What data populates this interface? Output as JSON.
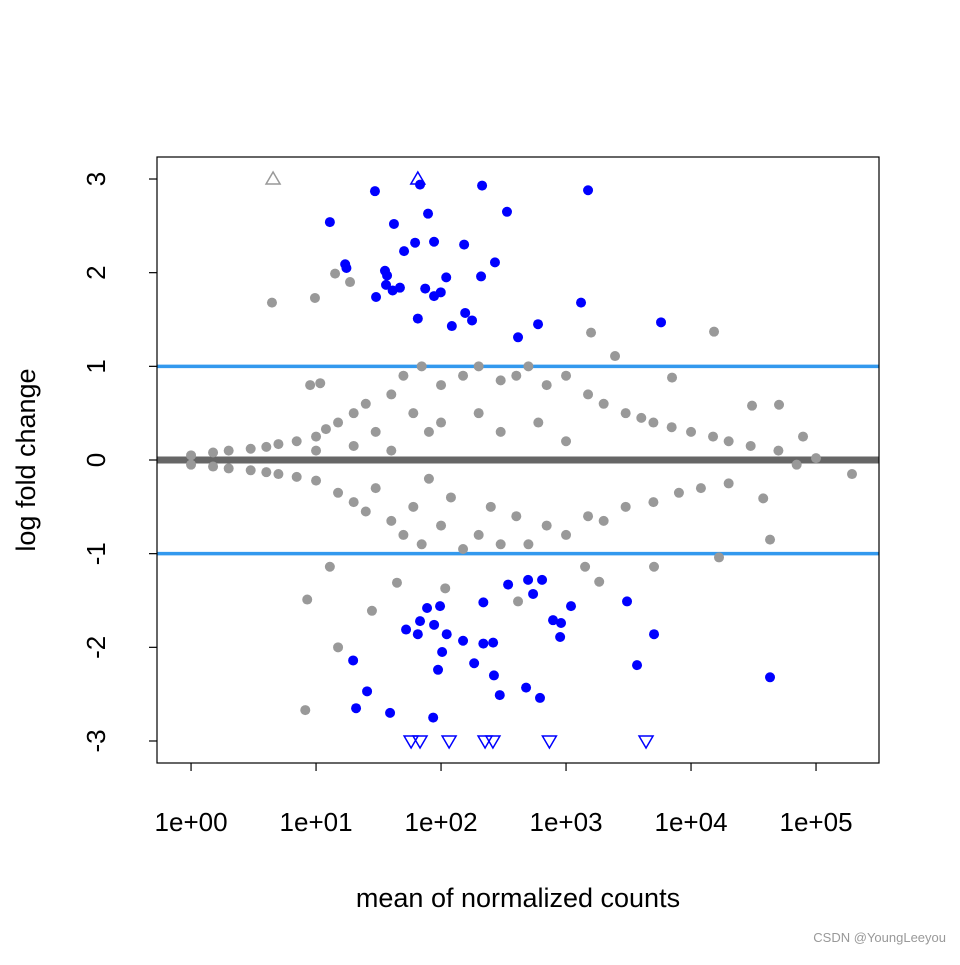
{
  "chart_data": {
    "type": "scatter",
    "xlabel": "mean of normalized counts",
    "ylabel": "log fold change",
    "log_x": true,
    "xlim": [
      0.534,
      319000
    ],
    "ylim": [
      -3.235,
      3.235
    ],
    "xticks": [
      {
        "value": 1,
        "label": "1e+00"
      },
      {
        "value": 10,
        "label": "1e+01"
      },
      {
        "value": 100,
        "label": "1e+02"
      },
      {
        "value": 1000,
        "label": "1e+03"
      },
      {
        "value": 10000,
        "label": "1e+04"
      },
      {
        "value": 100000,
        "label": "1e+05"
      }
    ],
    "yticks": [
      -3,
      -2,
      -1,
      0,
      1,
      2,
      3
    ],
    "hlines": [
      {
        "value": 0,
        "color": "#666666"
      },
      {
        "value": 1,
        "color": "#3399ee"
      },
      {
        "value": -1,
        "color": "#3399ee"
      }
    ],
    "series": [
      {
        "color": "#999999",
        "shape": "circle",
        "x": [
          1,
          1,
          1.5,
          1.5,
          2,
          2,
          3,
          3,
          4,
          4,
          5,
          5,
          7,
          7,
          10,
          10,
          10,
          12,
          15,
          15,
          20,
          20,
          20,
          25,
          25,
          30,
          30,
          40,
          40,
          40,
          50,
          50,
          60,
          60,
          70,
          70,
          80,
          80,
          100,
          100,
          100,
          120,
          150,
          150,
          200,
          200,
          200,
          250,
          300,
          300,
          300,
          400,
          400,
          500,
          500,
          600,
          700,
          700,
          1000,
          1000,
          1000,
          1500,
          1500,
          2000,
          2000,
          3000,
          3000,
          4000,
          5000,
          5000,
          7000,
          8000,
          10000,
          12000,
          15000,
          20000,
          20000,
          30000,
          50000,
          70000,
          100000,
          4.44,
          9.8,
          14.2,
          18.7,
          8.2,
          15,
          28,
          12.9,
          194000,
          15280,
          1585,
          2466,
          30760,
          50580,
          42850,
          5057,
          16740,
          1842,
          413,
          8.5,
          8.97,
          10.8,
          7047,
          78700,
          37800,
          1420,
          108,
          44.4
        ],
        "values": [
          0.05,
          -0.05,
          0.08,
          -0.07,
          0.1,
          -0.09,
          0.12,
          -0.11,
          0.14,
          -0.13,
          0.17,
          -0.15,
          0.2,
          -0.18,
          0.25,
          -0.22,
          0.1,
          0.33,
          0.4,
          -0.35,
          0.5,
          -0.45,
          0.15,
          0.6,
          -0.55,
          0.3,
          -0.3,
          0.7,
          -0.65,
          0.1,
          0.9,
          -0.8,
          0.5,
          -0.5,
          1.0,
          -0.9,
          0.3,
          -0.2,
          0.8,
          -0.7,
          0.4,
          -0.4,
          0.9,
          -0.95,
          1.0,
          -0.8,
          0.5,
          -0.5,
          0.85,
          -0.9,
          0.3,
          0.9,
          -0.6,
          1.0,
          -0.9,
          0.4,
          0.8,
          -0.7,
          0.9,
          -0.8,
          0.2,
          0.7,
          -0.6,
          0.6,
          -0.65,
          0.5,
          -0.5,
          0.45,
          0.4,
          -0.45,
          0.35,
          -0.35,
          0.3,
          -0.3,
          0.25,
          0.2,
          -0.25,
          0.15,
          0.1,
          -0.05,
          0.02,
          1.68,
          1.73,
          1.99,
          1.9,
          -2.67,
          -2.0,
          -1.61,
          -1.14,
          -0.15,
          1.37,
          1.36,
          1.11,
          0.58,
          0.59,
          -0.85,
          -1.14,
          -1.04,
          -1.3,
          -1.51,
          -1.49,
          0.8,
          0.82,
          0.88,
          0.25,
          -0.41,
          -1.14,
          -1.37,
          -1.31
        ]
      },
      {
        "color": "#0000ff",
        "shape": "circle",
        "x": [
          12.9,
          29.6,
          67.9,
          213,
          337,
          1500,
          42,
          78.7,
          17.1,
          17.5,
          50.6,
          62,
          87.9,
          153,
          35.6,
          37,
          110,
          209,
          270,
          36.3,
          41,
          46.9,
          74.7,
          87.9,
          99.5,
          30.2,
          65.2,
          156,
          177,
          122,
          413,
          597,
          1318,
          5754,
          344,
          497,
          643,
          545,
          218,
          1096,
          3076,
          77.3,
          98.2,
          67.9,
          88,
          111,
          52.5,
          65.2,
          150,
          261,
          218,
          787,
          912,
          897,
          5058,
          102,
          19.8,
          184,
          3698,
          94.6,
          265,
          25.6,
          295,
          479,
          619,
          20.9,
          39.1,
          86.5,
          42850
        ],
        "values": [
          2.54,
          2.87,
          2.94,
          2.93,
          2.65,
          2.88,
          2.52,
          2.63,
          2.09,
          2.05,
          2.23,
          2.32,
          2.33,
          2.3,
          2.02,
          1.97,
          1.95,
          1.96,
          2.11,
          1.87,
          1.81,
          1.84,
          1.83,
          1.75,
          1.79,
          1.74,
          1.51,
          1.57,
          1.49,
          1.43,
          1.31,
          1.45,
          1.68,
          1.47,
          -1.33,
          -1.28,
          -1.28,
          -1.43,
          -1.52,
          -1.56,
          -1.51,
          -1.58,
          -1.56,
          -1.72,
          -1.76,
          -1.86,
          -1.81,
          -1.86,
          -1.93,
          -1.95,
          -1.96,
          -1.71,
          -1.74,
          -1.89,
          -1.86,
          -2.05,
          -2.14,
          -2.17,
          -2.19,
          -2.24,
          -2.3,
          -2.47,
          -2.51,
          -2.43,
          -2.54,
          -2.65,
          -2.7,
          -2.75,
          -2.32
        ]
      },
      {
        "color": "#999999",
        "shape": "triangle-up",
        "x": [
          4.53
        ],
        "values": [
          3
        ]
      },
      {
        "color": "#0000ff",
        "shape": "triangle-up",
        "x": [
          65.2
        ],
        "values": [
          3
        ]
      },
      {
        "color": "#0000ff",
        "shape": "triangle-down",
        "x": [
          57.6,
          67.9,
          116,
          225,
          260,
          736,
          4365
        ],
        "values": [
          -3,
          -3,
          -3,
          -3,
          -3,
          -3,
          -3
        ]
      }
    ],
    "watermark": "CSDN @YoungLeeyou"
  }
}
